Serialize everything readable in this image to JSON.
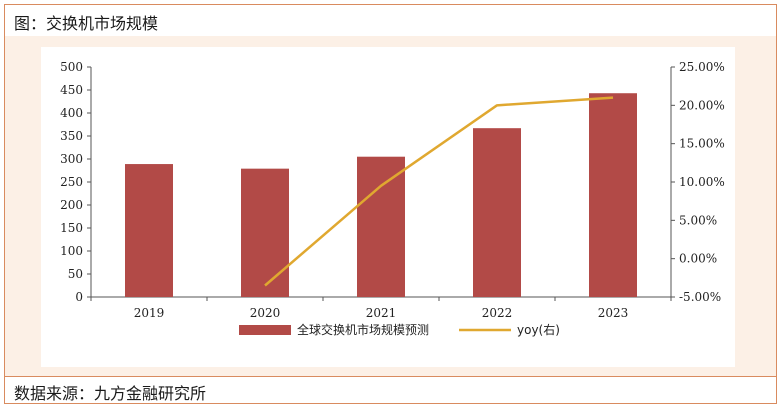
{
  "header": {
    "title": "图：交换机市场规模"
  },
  "footer": {
    "source": "数据来源：九方金融研究所"
  },
  "colors": {
    "bar": "#b24a47",
    "line": "#e0a830",
    "border": "#d98b5f",
    "panel_bg": "#fcf0e6"
  },
  "chart_data": {
    "type": "bar",
    "categories": [
      "2019",
      "2020",
      "2021",
      "2022",
      "2023"
    ],
    "series": [
      {
        "name": "全球交换机市场规模预测",
        "type": "bar",
        "axis": "left",
        "values": [
          289,
          279,
          305,
          367,
          443
        ]
      },
      {
        "name": "yoy(右)",
        "type": "line",
        "axis": "right",
        "values": [
          null,
          -3.5,
          9.5,
          20.0,
          21.0
        ]
      }
    ],
    "y_left": {
      "ylim": [
        0,
        500
      ],
      "ticks": [
        "0",
        "50",
        "100",
        "150",
        "200",
        "250",
        "300",
        "350",
        "400",
        "450",
        "500"
      ]
    },
    "y_right": {
      "ylim": [
        -5,
        25
      ],
      "ticks": [
        "-5.00%",
        "0.00%",
        "5.00%",
        "10.00%",
        "15.00%",
        "20.00%",
        "25.00%"
      ]
    },
    "grid": false,
    "legend_position": "bottom"
  }
}
